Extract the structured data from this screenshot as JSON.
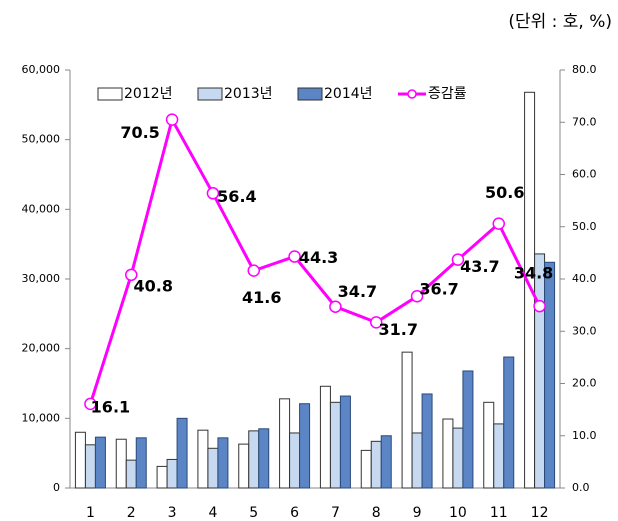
{
  "chart_data": {
    "type": "bar_line",
    "note": "(단위 : 호, %)",
    "categories": [
      "1",
      "2",
      "3",
      "4",
      "5",
      "6",
      "7",
      "8",
      "9",
      "10",
      "11",
      "12"
    ],
    "series": [
      {
        "name": "2012년",
        "color": "#ffffff",
        "values": [
          8000,
          7000,
          3100,
          8300,
          6300,
          12800,
          14600,
          5400,
          19500,
          9900,
          12300,
          56800
        ]
      },
      {
        "name": "2013년",
        "color": "#c6d9f1",
        "values": [
          6200,
          4000,
          4100,
          5700,
          8200,
          7900,
          12300,
          6700,
          7900,
          8600,
          9200,
          33600
        ]
      },
      {
        "name": "2014년",
        "color": "#5b85c5",
        "values": [
          7300,
          7200,
          10000,
          7200,
          8500,
          12100,
          13200,
          7500,
          13500,
          16800,
          18800,
          32400
        ]
      },
      {
        "name": "증감률",
        "color": "#ff00ff",
        "axis": "y2",
        "type": "line",
        "values": [
          16.1,
          40.8,
          70.5,
          56.4,
          41.6,
          44.3,
          34.7,
          31.7,
          36.7,
          43.7,
          50.6,
          34.8
        ]
      }
    ],
    "ylim": [
      0,
      60000
    ],
    "yticks": [
      0,
      {
        "value": 10000,
        "label": "10,000"
      },
      {
        "value": 20000,
        "label": "20,000"
      },
      {
        "value": 30000,
        "label": "30,000"
      },
      {
        "value": 40000,
        "label": "40,000"
      },
      {
        "value": 50000,
        "label": "50,000"
      },
      {
        "value": 60000,
        "label": "60,000"
      }
    ],
    "y2lim": [
      0,
      80
    ],
    "y2ticks": [
      {
        "value": 0,
        "label": "0.0"
      },
      {
        "value": 10,
        "label": "10.0"
      },
      {
        "value": 20,
        "label": "20.0"
      },
      {
        "value": 30,
        "label": "30.0"
      },
      {
        "value": 40,
        "label": "40.0"
      },
      {
        "value": 50,
        "label": "50.0"
      },
      {
        "value": 60,
        "label": "60.0"
      },
      {
        "value": 70,
        "label": "70.0"
      },
      {
        "value": 80,
        "label": "80.0"
      }
    ],
    "legend": "top"
  }
}
